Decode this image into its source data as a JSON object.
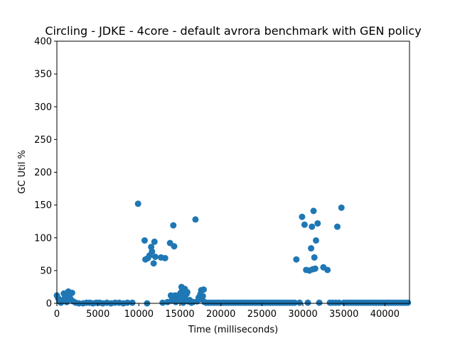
{
  "chart_data": {
    "type": "scatter",
    "title": "Circling - JDKE - 4core -  default avrora benchmark with GEN policy",
    "xlabel": "Time (milliseconds)",
    "ylabel": "GC Util %",
    "xlim": [
      0,
      43000
    ],
    "ylim": [
      0,
      400
    ],
    "xticks": [
      0,
      5000,
      10000,
      15000,
      20000,
      25000,
      30000,
      35000,
      40000
    ],
    "yticks": [
      0,
      50,
      100,
      150,
      200,
      250,
      300,
      350,
      400
    ],
    "grid": false,
    "marker_color": "#1f77b4",
    "series": [
      {
        "x": [
          0,
          150,
          300,
          500,
          700,
          850,
          1000,
          1200,
          1400,
          1550,
          1700,
          1850,
          2000,
          2300,
          2700,
          3200,
          3600,
          4000,
          4400,
          4800,
          5200,
          5600,
          6100,
          6600,
          7100,
          7600,
          8100,
          8600,
          9200,
          9900,
          10700,
          10800,
          11000,
          11100,
          11300,
          11500,
          11600,
          11800,
          11900,
          12000,
          12700,
          12900,
          13200,
          13500,
          13800,
          13900,
          14000,
          14100,
          14200,
          14300,
          14400,
          14500,
          14600,
          14700,
          14800,
          14900,
          15000,
          15100,
          15200,
          15300,
          15400,
          15500,
          15600,
          15700,
          15800,
          15900,
          16000,
          16200,
          16400,
          16600,
          16900,
          17100,
          17300,
          17500,
          17600,
          17700,
          17800,
          17900,
          18000,
          18200,
          18500,
          18800,
          19100,
          19400,
          19700,
          20000,
          20300,
          20600,
          20900,
          21200,
          21500,
          21800,
          22100,
          22400,
          22700,
          23000,
          23300,
          23600,
          23900,
          24200,
          24500,
          24800,
          25100,
          25400,
          25700,
          26000,
          26300,
          26600,
          26900,
          27200,
          27500,
          27800,
          28100,
          28400,
          28700,
          29000,
          29200,
          29600,
          29900,
          30200,
          30400,
          30600,
          30800,
          31000,
          31100,
          31200,
          31300,
          31400,
          31500,
          31600,
          31800,
          32000,
          32500,
          33000,
          33300,
          33600,
          34000,
          34200,
          34400,
          34700,
          35000,
          35300,
          35600,
          35900,
          36200,
          36500,
          36800,
          37100,
          37400,
          37700,
          38000,
          38300,
          38600,
          38900,
          39200,
          39500,
          39800,
          40100,
          40400,
          40700,
          41000,
          41300,
          41600,
          41900,
          42200,
          42500,
          42800
        ],
        "y": [
          12,
          8,
          3,
          1,
          5,
          15,
          9,
          2,
          18,
          11,
          6,
          16,
          3,
          1,
          0,
          0,
          1,
          1,
          0,
          1,
          1,
          0,
          1,
          0,
          1,
          1,
          0,
          1,
          1,
          152,
          96,
          67,
          0,
          69,
          73,
          86,
          79,
          61,
          94,
          71,
          70,
          1,
          69,
          2,
          92,
          12,
          4,
          9,
          119,
          87,
          12,
          2,
          6,
          10,
          4,
          13,
          8,
          16,
          25,
          20,
          1,
          11,
          22,
          6,
          14,
          17,
          3,
          5,
          1,
          2,
          128,
          3,
          9,
          14,
          20,
          6,
          11,
          21,
          2,
          1,
          1,
          1,
          1,
          1,
          1,
          1,
          1,
          1,
          1,
          1,
          1,
          1,
          1,
          1,
          1,
          1,
          1,
          1,
          1,
          1,
          1,
          1,
          1,
          1,
          1,
          1,
          1,
          1,
          1,
          1,
          1,
          1,
          1,
          1,
          1,
          1,
          67,
          1,
          132,
          120,
          51,
          1,
          50,
          84,
          117,
          52,
          141,
          70,
          53,
          96,
          122,
          1,
          55,
          51,
          1,
          1,
          1,
          117,
          1,
          146,
          1,
          1,
          1,
          1,
          1,
          1,
          1,
          1,
          1,
          1,
          1,
          1,
          1,
          1,
          1,
          1,
          1,
          1,
          1,
          1,
          1,
          1,
          1,
          1,
          1,
          1,
          1
        ]
      }
    ]
  }
}
